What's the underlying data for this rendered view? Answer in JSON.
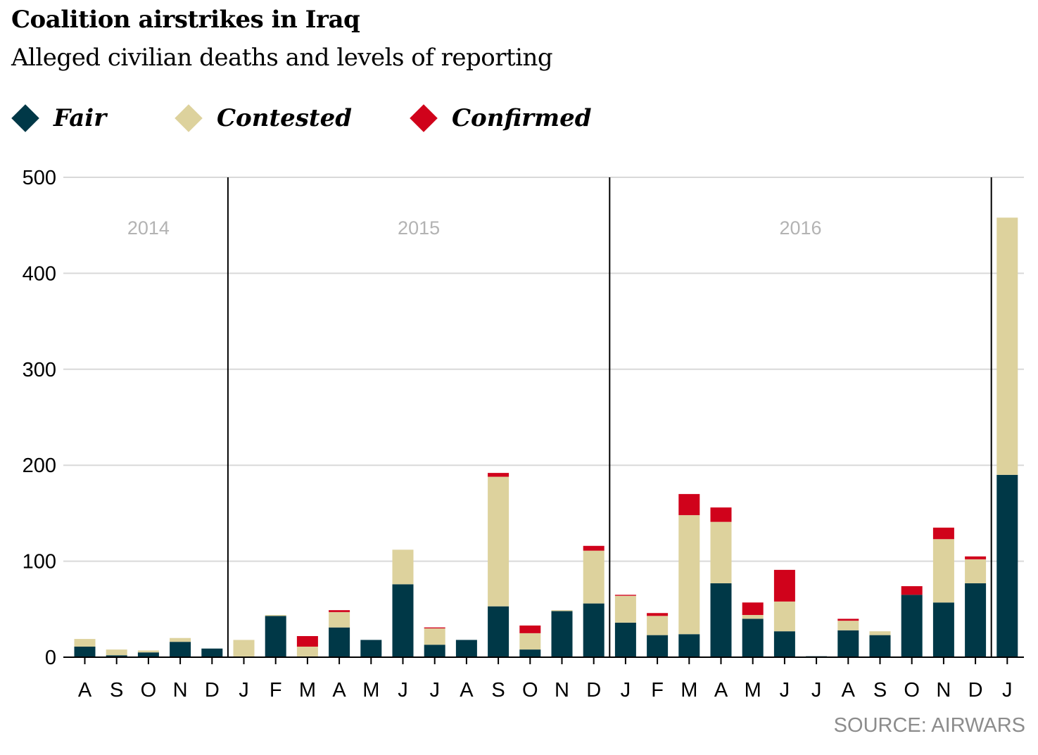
{
  "chart_data": {
    "type": "bar",
    "stacked": true,
    "title": "Coalition airstrikes in Iraq",
    "subtitle": "Alleged civilian deaths and levels of reporting",
    "source": "SOURCE: AIRWARS",
    "ylim": [
      0,
      500
    ],
    "yticks": [
      0,
      100,
      200,
      300,
      400,
      500
    ],
    "grid": true,
    "legend_position": "top-left",
    "categories": [
      "A",
      "S",
      "O",
      "N",
      "D",
      "J",
      "F",
      "M",
      "A",
      "M",
      "J",
      "J",
      "A",
      "S",
      "O",
      "N",
      "D",
      "J",
      "F",
      "M",
      "A",
      "M",
      "J",
      "J",
      "A",
      "S",
      "O",
      "N",
      "D",
      "J"
    ],
    "years": [
      {
        "label": "2014",
        "start": 0,
        "end": 4
      },
      {
        "label": "2015",
        "start": 5,
        "end": 16
      },
      {
        "label": "2016",
        "start": 17,
        "end": 28
      }
    ],
    "year_dividers_before": [
      5,
      17,
      29
    ],
    "series": [
      {
        "name": "Fair",
        "color": "#003847",
        "values": [
          11,
          2,
          5,
          16,
          9,
          0,
          43,
          0,
          31,
          18,
          76,
          13,
          18,
          53,
          8,
          48,
          56,
          36,
          23,
          24,
          77,
          40,
          27,
          1,
          28,
          23,
          65,
          57,
          77,
          190
        ]
      },
      {
        "name": "Contested",
        "color": "#ddd29d",
        "values": [
          8,
          6,
          2,
          4,
          0,
          18,
          1,
          11,
          16,
          0,
          36,
          17,
          0,
          135,
          17,
          1,
          55,
          28,
          20,
          124,
          64,
          4,
          31,
          0,
          10,
          4,
          0,
          66,
          25,
          268
        ]
      },
      {
        "name": "Confirmed",
        "color": "#d0021b",
        "values": [
          0,
          0,
          0,
          0,
          0,
          0,
          0,
          11,
          2,
          0,
          0,
          1,
          0,
          4,
          8,
          0,
          5,
          1,
          3,
          22,
          15,
          13,
          33,
          0,
          2,
          0,
          9,
          12,
          3,
          0
        ]
      }
    ]
  }
}
